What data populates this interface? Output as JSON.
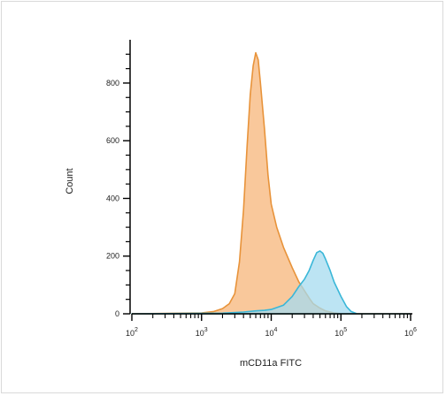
{
  "chart_data": {
    "type": "area",
    "title": "",
    "xlabel": "mCD11a FITC",
    "ylabel": "Count",
    "x_scale": "log",
    "xlim": [
      100,
      1000000
    ],
    "ylim": [
      0,
      950
    ],
    "grid": false,
    "legend": "none",
    "y_ticks": [
      {
        "value": 0,
        "label": "0"
      },
      {
        "value": 200,
        "label": "200"
      },
      {
        "value": 400,
        "label": "400"
      },
      {
        "value": 600,
        "label": "600"
      },
      {
        "value": 800,
        "label": "800"
      }
    ],
    "x_ticks": [
      {
        "value": 100,
        "label_base": "10",
        "label_exp": "2"
      },
      {
        "value": 1000,
        "label_base": "10",
        "label_exp": "3"
      },
      {
        "value": 10000,
        "label_base": "10",
        "label_exp": "4"
      },
      {
        "value": 100000,
        "label_base": "10",
        "label_exp": "5"
      },
      {
        "value": 1000000,
        "label_base": "10",
        "label_exp": "6"
      }
    ],
    "series": [
      {
        "fill": "#f9c596",
        "stroke": "#e8933a",
        "points": [
          [
            100,
            0
          ],
          [
            1000,
            3
          ],
          [
            1500,
            8
          ],
          [
            2000,
            18
          ],
          [
            2500,
            35
          ],
          [
            3000,
            70
          ],
          [
            3500,
            180
          ],
          [
            4000,
            360
          ],
          [
            4500,
            580
          ],
          [
            5000,
            760
          ],
          [
            5500,
            860
          ],
          [
            6000,
            905
          ],
          [
            6500,
            880
          ],
          [
            7000,
            800
          ],
          [
            8000,
            640
          ],
          [
            9000,
            480
          ],
          [
            10000,
            380
          ],
          [
            12000,
            300
          ],
          [
            15000,
            230
          ],
          [
            20000,
            160
          ],
          [
            25000,
            110
          ],
          [
            30000,
            80
          ],
          [
            35000,
            55
          ],
          [
            40000,
            35
          ],
          [
            50000,
            20
          ],
          [
            60000,
            10
          ],
          [
            80000,
            3
          ],
          [
            100000,
            0
          ],
          [
            1000000,
            0
          ]
        ]
      },
      {
        "fill": "#a6dbef",
        "stroke": "#3ab7d8",
        "points": [
          [
            100,
            0
          ],
          [
            2000,
            2
          ],
          [
            4000,
            6
          ],
          [
            6000,
            10
          ],
          [
            8000,
            12
          ],
          [
            10000,
            15
          ],
          [
            15000,
            30
          ],
          [
            20000,
            60
          ],
          [
            25000,
            95
          ],
          [
            30000,
            120
          ],
          [
            35000,
            150
          ],
          [
            40000,
            185
          ],
          [
            45000,
            212
          ],
          [
            50000,
            218
          ],
          [
            55000,
            210
          ],
          [
            60000,
            190
          ],
          [
            70000,
            150
          ],
          [
            80000,
            110
          ],
          [
            100000,
            60
          ],
          [
            120000,
            25
          ],
          [
            140000,
            8
          ],
          [
            170000,
            0
          ],
          [
            1000000,
            0
          ]
        ]
      }
    ]
  }
}
